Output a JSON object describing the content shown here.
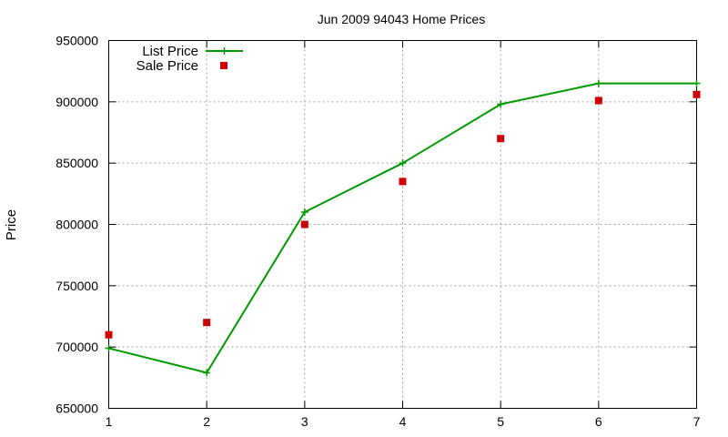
{
  "chart_data": {
    "type": "line",
    "title": "Jun 2009 94043 Home Prices",
    "xlabel": "",
    "ylabel": "Price",
    "x": [
      1,
      2,
      3,
      4,
      5,
      6,
      7
    ],
    "xlim": [
      1,
      7
    ],
    "ylim": [
      650000,
      950000
    ],
    "x_ticks": [
      "1",
      "2",
      "3",
      "4",
      "5",
      "6",
      "7"
    ],
    "y_ticks": [
      650000,
      700000,
      750000,
      800000,
      850000,
      900000,
      950000
    ],
    "y_tick_labels": [
      "650000",
      "700000",
      "750000",
      "800000",
      "850000",
      "900000",
      "950000"
    ],
    "grid": true,
    "legend_position": "top-left",
    "series": [
      {
        "name": "List Price",
        "style": "line-with-cross-markers",
        "color": "#009900",
        "values": [
          699000,
          679000,
          810000,
          850000,
          898000,
          915000,
          915000
        ]
      },
      {
        "name": "Sale Price",
        "style": "square-points",
        "color": "#cc0000",
        "values": [
          710000,
          720000,
          800000,
          835000,
          870000,
          901000,
          906000
        ]
      }
    ]
  }
}
